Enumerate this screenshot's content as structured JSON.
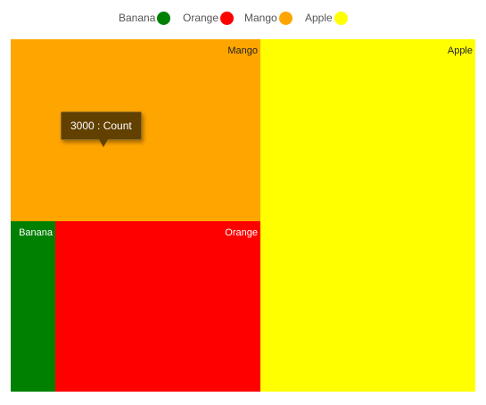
{
  "legend": [
    {
      "label": "Banana",
      "color": "#008000"
    },
    {
      "label": "Orange",
      "color": "#ff0000"
    },
    {
      "label": "Mango",
      "color": "#ffa500"
    },
    {
      "label": "Apple",
      "color": "#ffff00"
    }
  ],
  "chart_data": {
    "type": "treemap",
    "title": "",
    "items": [
      {
        "name": "Mango",
        "value": 3000,
        "color": "#ffa500"
      },
      {
        "name": "Apple",
        "value": 3800,
        "color": "#ffff00"
      },
      {
        "name": "Banana",
        "value": 500,
        "color": "#008000"
      },
      {
        "name": "Orange",
        "value": 2300,
        "color": "#ff0000"
      }
    ],
    "legend_position": "top"
  },
  "tooltip": {
    "text": "3000 : Count"
  }
}
